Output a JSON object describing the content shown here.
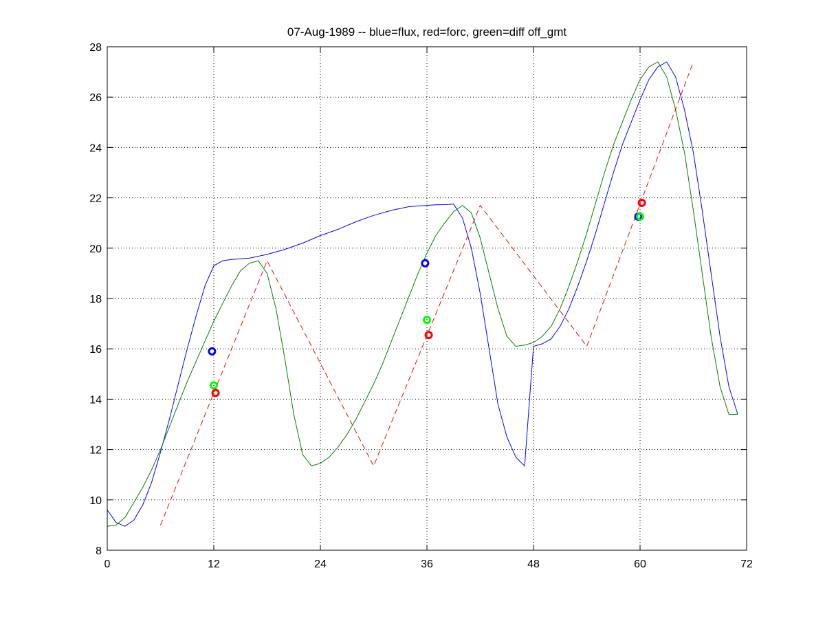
{
  "chart_data": {
    "type": "line",
    "title": "07-Aug-1989 -- blue=flux, red=forc, green=diff off_gmt",
    "xlabel": "",
    "ylabel": "",
    "xlim": [
      0,
      72
    ],
    "ylim": [
      8,
      28
    ],
    "xticks": [
      0,
      12,
      24,
      36,
      48,
      60,
      72
    ],
    "yticks": [
      8,
      10,
      12,
      14,
      16,
      18,
      20,
      22,
      24,
      26,
      28
    ],
    "grid": true,
    "legend": "none",
    "series": [
      {
        "color": "#0000ff",
        "style": "solid",
        "x": [
          0,
          1,
          2,
          3,
          4,
          5,
          6,
          7,
          8,
          9,
          10,
          11,
          12,
          13,
          14,
          16,
          18,
          20,
          22,
          24,
          26,
          28,
          30,
          32,
          34,
          36,
          37,
          38,
          39,
          40,
          41,
          42,
          43,
          44,
          45,
          46,
          47,
          48,
          49,
          50,
          51,
          52,
          53,
          54,
          55,
          56,
          57,
          58,
          59,
          60,
          61,
          62,
          63,
          64,
          65,
          66,
          67,
          68,
          69,
          70,
          71
        ],
        "values": [
          9.6,
          9.1,
          8.95,
          9.2,
          9.8,
          10.7,
          11.9,
          13.2,
          14.6,
          16.0,
          17.3,
          18.5,
          19.3,
          19.5,
          19.55,
          19.6,
          19.75,
          19.95,
          20.2,
          20.5,
          20.75,
          21.05,
          21.3,
          21.5,
          21.65,
          21.7,
          21.72,
          21.73,
          21.75,
          21.2,
          20.0,
          18.2,
          16.0,
          13.8,
          12.5,
          11.7,
          11.35,
          16.1,
          16.2,
          16.4,
          16.9,
          17.6,
          18.5,
          19.5,
          20.6,
          21.8,
          23.0,
          24.1,
          25.0,
          25.9,
          26.7,
          27.2,
          27.4,
          26.8,
          25.5,
          23.8,
          21.5,
          19.0,
          16.5,
          14.5,
          13.4
        ]
      },
      {
        "color": "#007f00",
        "style": "solid",
        "x": [
          0,
          1,
          2,
          3,
          4,
          5,
          6,
          7,
          8,
          9,
          10,
          11,
          12,
          13,
          14,
          15,
          16,
          17,
          18,
          19,
          20,
          21,
          22,
          23,
          24,
          25,
          26,
          27,
          28,
          29,
          30,
          31,
          32,
          33,
          34,
          35,
          36,
          37,
          38,
          39,
          40,
          41,
          42,
          43,
          44,
          45,
          46,
          47,
          48,
          49,
          50,
          51,
          52,
          53,
          54,
          55,
          56,
          57,
          58,
          59,
          60,
          61,
          62,
          63,
          64,
          65,
          66,
          67,
          68,
          69,
          70,
          71
        ],
        "values": [
          8.95,
          9.0,
          9.3,
          9.9,
          10.5,
          11.2,
          12.0,
          12.9,
          13.8,
          14.7,
          15.5,
          16.3,
          17.1,
          17.8,
          18.5,
          19.1,
          19.4,
          19.5,
          19.0,
          17.6,
          15.6,
          13.4,
          11.8,
          11.35,
          11.45,
          11.7,
          12.1,
          12.6,
          13.2,
          13.9,
          14.6,
          15.4,
          16.3,
          17.2,
          18.1,
          19.0,
          19.8,
          20.5,
          21.0,
          21.45,
          21.7,
          21.4,
          20.4,
          19.0,
          17.6,
          16.5,
          16.1,
          16.15,
          16.25,
          16.5,
          16.9,
          17.6,
          18.5,
          19.5,
          20.6,
          21.8,
          23.0,
          24.1,
          25.0,
          25.9,
          26.7,
          27.2,
          27.4,
          26.8,
          25.5,
          23.8,
          21.5,
          19.0,
          16.5,
          14.5,
          13.4,
          13.4
        ]
      },
      {
        "color": "#ff0000",
        "style": "dashed",
        "x": [
          6,
          18,
          30,
          42,
          54,
          66
        ],
        "values": [
          9.0,
          19.5,
          11.35,
          21.7,
          16.1,
          27.4
        ]
      }
    ],
    "markers": [
      {
        "color": "#0000ff",
        "x": 11.8,
        "y": 15.9
      },
      {
        "color": "#00ff00",
        "x": 12.0,
        "y": 14.55
      },
      {
        "color": "#ff0000",
        "x": 12.2,
        "y": 14.25
      },
      {
        "color": "#0000ff",
        "x": 35.8,
        "y": 19.4
      },
      {
        "color": "#00ff00",
        "x": 36.0,
        "y": 17.15
      },
      {
        "color": "#ff0000",
        "x": 36.2,
        "y": 16.55
      },
      {
        "color": "#0000ff",
        "x": 59.8,
        "y": 21.25
      },
      {
        "color": "#00ff00",
        "x": 60.0,
        "y": 21.25
      },
      {
        "color": "#ff0000",
        "x": 60.2,
        "y": 21.8
      }
    ]
  }
}
